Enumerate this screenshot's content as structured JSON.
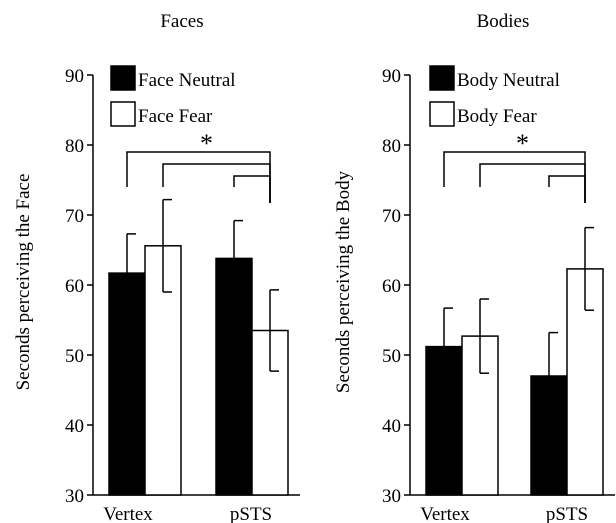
{
  "chart_data": [
    {
      "type": "bar",
      "title": "Faces",
      "ylabel": "Seconds perceiving the Face",
      "xlabel": "",
      "categories": [
        "Vertex",
        "pSTS"
      ],
      "ylim": [
        30,
        90
      ],
      "yticks": [
        30,
        40,
        50,
        60,
        70,
        80,
        90
      ],
      "grid": false,
      "legend_position": "top-left",
      "series": [
        {
          "name": "Face Neutral",
          "color": "#000000",
          "values": [
            61.7,
            63.8
          ],
          "errors": [
            5.6,
            5.4
          ]
        },
        {
          "name": "Face Fear",
          "color": "#ffffff",
          "values": [
            65.6,
            53.5
          ],
          "errors": [
            6.6,
            5.8
          ]
        }
      ],
      "significance": {
        "marker": "*"
      }
    },
    {
      "type": "bar",
      "title": "Bodies",
      "ylabel": "Seconds perceiving the Body",
      "xlabel": "",
      "categories": [
        "Vertex",
        "pSTS"
      ],
      "ylim": [
        30,
        90
      ],
      "yticks": [
        30,
        40,
        50,
        60,
        70,
        80,
        90
      ],
      "grid": false,
      "legend_position": "top-left",
      "series": [
        {
          "name": "Body Neutral",
          "color": "#000000",
          "values": [
            51.2,
            47.0
          ],
          "errors": [
            5.5,
            6.2
          ]
        },
        {
          "name": "Body Fear",
          "color": "#ffffff",
          "values": [
            52.7,
            62.3
          ],
          "errors": [
            5.3,
            5.9
          ]
        }
      ],
      "significance": {
        "marker": "*"
      }
    }
  ]
}
